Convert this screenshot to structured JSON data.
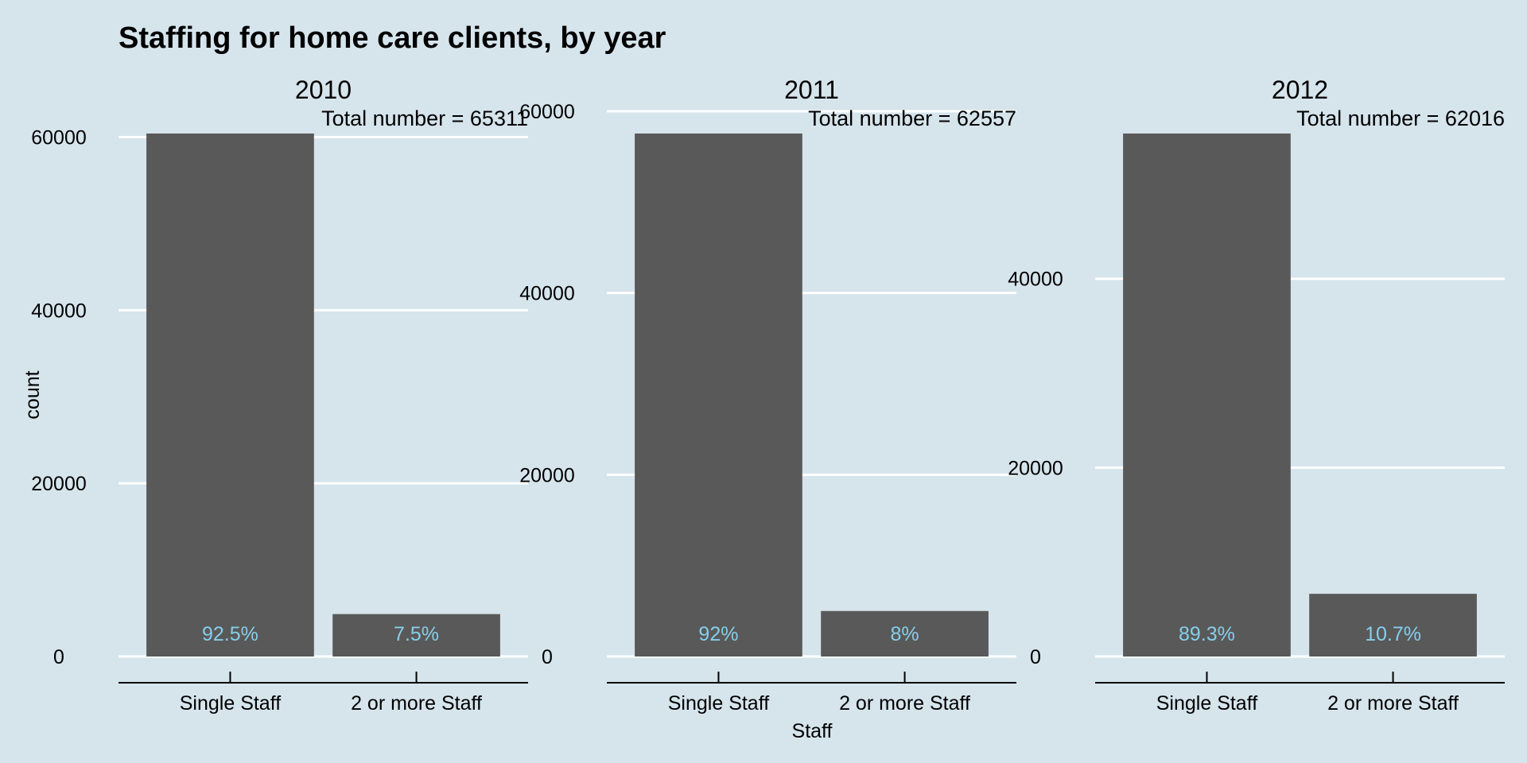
{
  "chart_data": {
    "type": "bar",
    "title": "Staffing for home care clients, by year",
    "xlabel": "Staff",
    "ylabel": "count",
    "categories": [
      "Single Staff",
      "2 or more Staff"
    ],
    "bar_color": "#595959",
    "label_color": "#87ceeb",
    "background": "#d6e4ec",
    "grid_color": "#ffffff",
    "facets": [
      {
        "panel": "2010",
        "annotation": "Total number = 65311",
        "values": [
          60413,
          4898
        ],
        "percent_labels": [
          "92.5%",
          "7.5%"
        ],
        "ylim": [
          0,
          60413
        ],
        "yticks": [
          0,
          20000,
          40000,
          60000
        ]
      },
      {
        "panel": "2011",
        "annotation": "Total number = 62557",
        "values": [
          57552,
          5005
        ],
        "percent_labels": [
          "92%",
          "8%"
        ],
        "ylim": [
          0,
          57552
        ],
        "yticks": [
          0,
          20000,
          40000,
          60000
        ]
      },
      {
        "panel": "2012",
        "annotation": "Total number = 62016",
        "values": [
          55380,
          6636
        ],
        "percent_labels": [
          "89.3%",
          "10.7%"
        ],
        "ylim": [
          0,
          55380
        ],
        "yticks": [
          0,
          20000,
          40000
        ]
      }
    ]
  }
}
